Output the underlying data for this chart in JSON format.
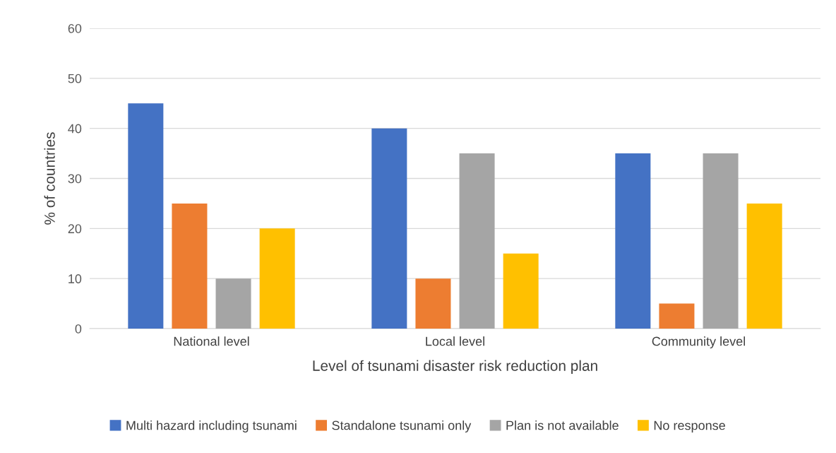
{
  "chart_data": {
    "type": "bar",
    "xlabel": "Level of tsunami disaster risk reduction plan",
    "ylabel": "% of countries",
    "categories": [
      "National level",
      "Local level",
      "Community level"
    ],
    "series": [
      {
        "name": "Multi hazard including tsunami",
        "color": "#4472c4",
        "values": [
          45,
          40,
          35
        ]
      },
      {
        "name": "Standalone tsunami only",
        "color": "#ed7d31",
        "values": [
          25,
          10,
          5
        ]
      },
      {
        "name": "Plan is not available",
        "color": "#a5a5a5",
        "values": [
          10,
          35,
          35
        ]
      },
      {
        "name": "No response",
        "color": "#ffc000",
        "values": [
          20,
          15,
          25
        ]
      }
    ],
    "ylim": [
      0,
      60
    ],
    "yticks": [
      0,
      10,
      20,
      30,
      40,
      50,
      60
    ],
    "grid": "y",
    "legend": "bottom"
  }
}
